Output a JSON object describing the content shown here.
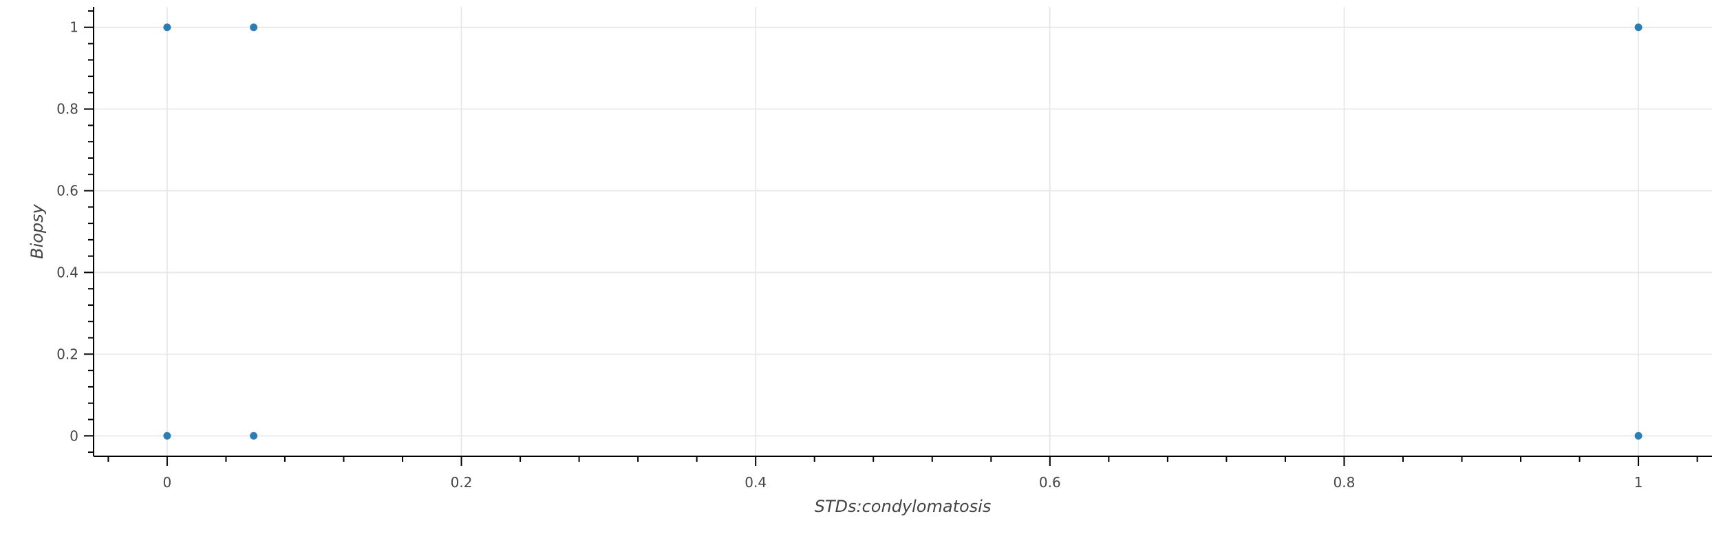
{
  "chart_data": {
    "type": "scatter",
    "title": "",
    "xlabel": "STDs:condylomatosis",
    "ylabel": "Biopsy",
    "xlim": [
      -0.05,
      1.05
    ],
    "ylim": [
      -0.05,
      1.05
    ],
    "x_ticks": [
      "0",
      "0.2",
      "0.4",
      "0.6",
      "0.8",
      "1"
    ],
    "y_ticks": [
      "0",
      "0.2",
      "0.4",
      "0.6",
      "0.8",
      "1"
    ],
    "grid": true,
    "legend": "none",
    "point_color": "#1f77b4",
    "series": [
      {
        "x": [
          0,
          0,
          0.0588,
          0.0588,
          1,
          1
        ],
        "y": [
          0,
          1,
          0,
          1,
          0,
          1
        ]
      }
    ]
  }
}
